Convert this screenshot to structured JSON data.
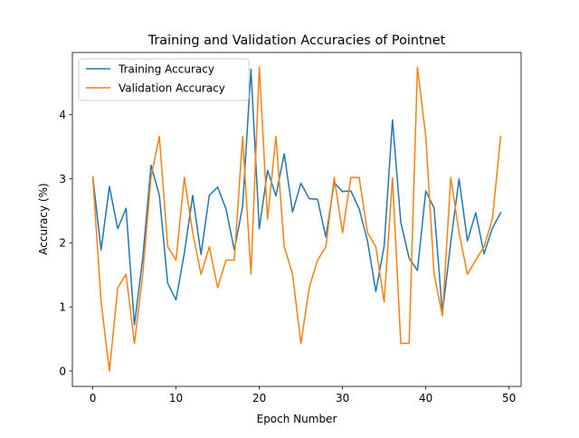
{
  "chart_data": {
    "type": "line",
    "title": "Training and Validation Accuracies of Pointnet",
    "xlabel": "Epoch Number",
    "ylabel": "Accuracy (%)",
    "xlim": [
      -2.45,
      51.45
    ],
    "ylim": [
      -0.24,
      4.97
    ],
    "xticks": [
      0,
      10,
      20,
      30,
      40,
      50
    ],
    "yticks": [
      0,
      1,
      2,
      3,
      4
    ],
    "grid": false,
    "legend_position": "upper left",
    "x": [
      0,
      1,
      2,
      3,
      4,
      5,
      6,
      7,
      8,
      9,
      10,
      11,
      12,
      13,
      14,
      15,
      16,
      17,
      18,
      19,
      20,
      21,
      22,
      23,
      24,
      25,
      26,
      27,
      28,
      29,
      30,
      31,
      32,
      33,
      34,
      35,
      36,
      37,
      38,
      39,
      40,
      41,
      42,
      43,
      44,
      45,
      46,
      47,
      48,
      49
    ],
    "series": [
      {
        "name": "Training Accuracy",
        "color": "#1f77b4",
        "values": [
          3.03,
          1.89,
          2.88,
          2.22,
          2.54,
          0.72,
          1.76,
          3.21,
          2.74,
          1.37,
          1.11,
          1.84,
          2.74,
          1.82,
          2.74,
          2.87,
          2.53,
          1.89,
          2.57,
          4.71,
          2.22,
          3.13,
          2.73,
          3.39,
          2.48,
          2.93,
          2.69,
          2.68,
          2.09,
          2.94,
          2.8,
          2.81,
          2.53,
          2.03,
          1.24,
          1.95,
          3.92,
          2.32,
          1.76,
          1.57,
          2.81,
          2.54,
          0.9,
          2.01,
          3.0,
          2.03,
          2.47,
          1.83,
          2.23,
          2.47
        ]
      },
      {
        "name": "Validation Accuracy",
        "color": "#ff7f0e",
        "values": [
          3.03,
          1.08,
          0.0,
          1.3,
          1.51,
          0.43,
          1.51,
          3.03,
          3.66,
          1.94,
          1.73,
          3.02,
          2.16,
          1.51,
          1.94,
          1.3,
          1.73,
          1.73,
          3.66,
          1.51,
          4.74,
          2.37,
          3.66,
          1.94,
          1.51,
          0.43,
          1.3,
          1.73,
          1.94,
          3.02,
          2.16,
          3.02,
          3.02,
          2.16,
          1.94,
          1.08,
          3.02,
          0.43,
          0.43,
          4.74,
          3.66,
          1.51,
          0.86,
          3.02,
          2.16,
          1.51,
          1.73,
          1.94,
          2.37,
          3.66
        ]
      }
    ]
  }
}
